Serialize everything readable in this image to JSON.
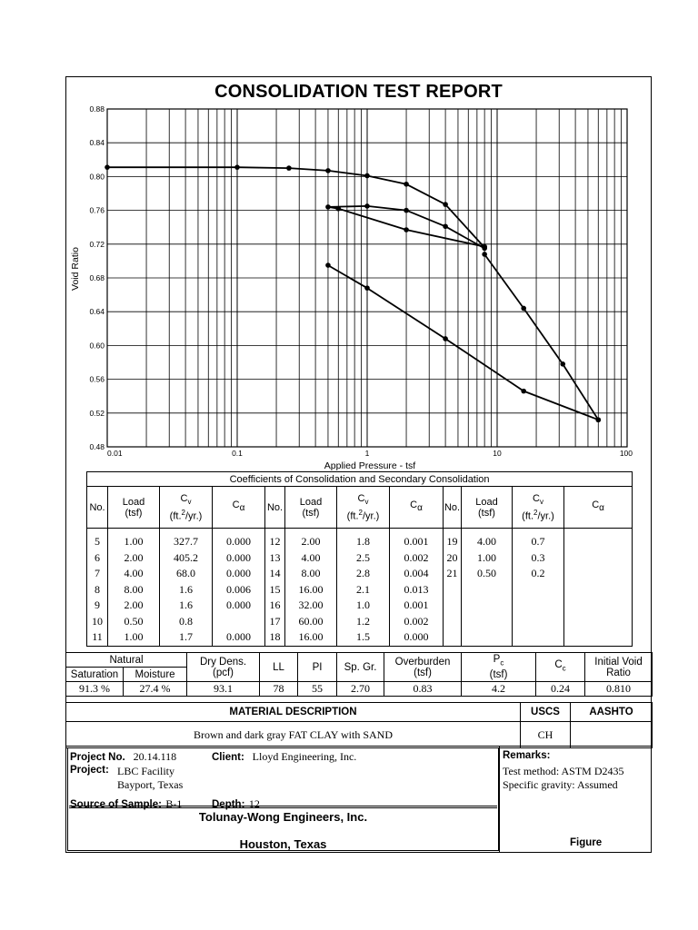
{
  "title": "CONSOLIDATION TEST REPORT",
  "chart_data": {
    "type": "line",
    "xscale": "log",
    "xlim": [
      0.01,
      100
    ],
    "ylim": [
      0.48,
      0.88
    ],
    "xlabel": "Applied Pressure - tsf",
    "ylabel": "Void Ratio",
    "x_ticks": [
      "0.01",
      "0.1",
      "1",
      "10",
      "100"
    ],
    "y_ticks": [
      "0.88",
      "0.84",
      "0.80",
      "0.76",
      "0.72",
      "0.68",
      "0.64",
      "0.60",
      "0.56",
      "0.52",
      "0.48"
    ],
    "grid": true,
    "series": [
      {
        "x": [
          0.01,
          0.1,
          0.25,
          0.5,
          1,
          2,
          4,
          8
        ],
        "y": [
          0.811,
          0.811,
          0.81,
          0.807,
          0.801,
          0.791,
          0.767,
          0.716
        ],
        "points": [
          true,
          true,
          true,
          true,
          true,
          true,
          true,
          true
        ]
      },
      {
        "x": [
          8,
          4,
          2,
          1,
          0.5
        ],
        "y": [
          0.715,
          0.741,
          0.76,
          0.765,
          0.764
        ],
        "points": [
          true,
          true,
          true,
          true,
          true
        ]
      },
      {
        "x": [
          0.5,
          0.6,
          2,
          8
        ],
        "y": [
          0.764,
          0.762,
          0.737,
          0.717
        ],
        "points": [
          false,
          true,
          true,
          true
        ]
      },
      {
        "x": [
          8,
          16,
          32,
          60
        ],
        "y": [
          0.708,
          0.644,
          0.578,
          0.512
        ],
        "points": [
          true,
          true,
          true,
          true
        ]
      },
      {
        "x": [
          60,
          16,
          4,
          1,
          0.5
        ],
        "y": [
          0.512,
          0.546,
          0.608,
          0.668,
          0.695
        ],
        "points": [
          true,
          true,
          true,
          true,
          true
        ]
      }
    ]
  },
  "coef_table": {
    "caption": "Coefficients of Consolidation and Secondary Consolidation",
    "headers": {
      "no": "No.",
      "load": "Load",
      "load_unit": "(tsf)",
      "cv": "C",
      "cv_sub": "v",
      "cv_unit": "(ft.",
      "cv_unit_sup": "2",
      "cv_unit_tail": "/yr.)",
      "ca": "C",
      "ca_sub": "α"
    },
    "rows": [
      [
        "5",
        "1.00",
        "327.7",
        "0.000",
        "12",
        "2.00",
        "1.8",
        "0.001",
        "19",
        "4.00",
        "0.7",
        ""
      ],
      [
        "6",
        "2.00",
        "405.2",
        "0.000",
        "13",
        "4.00",
        "2.5",
        "0.002",
        "20",
        "1.00",
        "0.3",
        ""
      ],
      [
        "7",
        "4.00",
        "68.0",
        "0.000",
        "14",
        "8.00",
        "2.8",
        "0.004",
        "21",
        "0.50",
        "0.2",
        ""
      ],
      [
        "8",
        "8.00",
        "1.6",
        "0.006",
        "15",
        "16.00",
        "2.1",
        "0.013",
        "",
        "",
        "",
        ""
      ],
      [
        "9",
        "2.00",
        "1.6",
        "0.000",
        "16",
        "32.00",
        "1.0",
        "0.001",
        "",
        "",
        "",
        ""
      ],
      [
        "10",
        "0.50",
        "0.8",
        "",
        "17",
        "60.00",
        "1.2",
        "0.002",
        "",
        "",
        "",
        ""
      ],
      [
        "11",
        "1.00",
        "1.7",
        "0.000",
        "18",
        "16.00",
        "1.5",
        "0.000",
        "",
        "",
        "",
        ""
      ]
    ]
  },
  "properties": {
    "natural": "Natural",
    "saturation_label": "Saturation",
    "moisture_label": "Moisture",
    "dry_dens_label": "Dry Dens.",
    "dry_dens_unit": "(pcf)",
    "ll_label": "LL",
    "pi_label": "PI",
    "sp_gr_label": "Sp. Gr.",
    "overburden_label": "Overburden",
    "overburden_unit": "(tsf)",
    "pc_label": "P",
    "pc_sub": "c",
    "pc_unit": "(tsf)",
    "cc_label": "C",
    "cc_sub": "c",
    "void_label_1": "Initial Void",
    "void_label_2": "Ratio",
    "saturation": "91.3 %",
    "moisture": "27.4 %",
    "dry_dens": "93.1",
    "ll": "78",
    "pi": "55",
    "sp_gr": "2.70",
    "overburden": "0.83",
    "pc": "4.2",
    "cc": "0.24",
    "void_ratio": "0.810"
  },
  "material": {
    "header": "MATERIAL DESCRIPTION",
    "uscs_label": "USCS",
    "aashto_label": "AASHTO",
    "description": "Brown and dark gray FAT CLAY with SAND",
    "uscs": "CH",
    "aashto": ""
  },
  "project": {
    "project_no_label": "Project No.",
    "project_no": "20.14.118",
    "client_label": "Client:",
    "client": "Lloyd Engineering, Inc.",
    "project_label": "Project:",
    "project_line1": "LBC Facility",
    "project_line2": "Bayport, Texas",
    "source_label": "Source of Sample:",
    "source": "B-1",
    "depth_label": "Depth:",
    "depth": "12",
    "remarks_label": "Remarks:",
    "remarks_line1": "Test method: ASTM D2435",
    "remarks_line2": "Specific gravity: Assumed",
    "company": "Tolunay-Wong Engineers, Inc.",
    "city": "Houston, Texas",
    "figure_label": "Figure"
  }
}
